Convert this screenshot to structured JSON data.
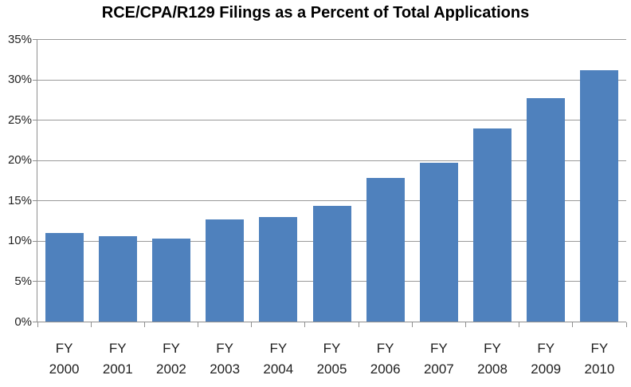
{
  "chart_data": {
    "type": "bar",
    "title": "RCE/CPA/R129 Filings as a Percent of Total Applications",
    "categories": [
      "FY 2000",
      "FY 2001",
      "FY 2002",
      "FY 2003",
      "FY 2004",
      "FY 2005",
      "FY 2006",
      "FY 2007",
      "FY 2008",
      "FY 2009",
      "FY 2010"
    ],
    "values": [
      11.0,
      10.6,
      10.3,
      12.7,
      13.0,
      14.4,
      17.8,
      19.7,
      24.0,
      27.7,
      31.2
    ],
    "title_position": "top-center",
    "xlabel": "",
    "ylabel": "",
    "ylim": [
      0,
      35
    ],
    "ytick_step": 5,
    "ytick_suffix": "%",
    "grid": true,
    "legend": false,
    "colors": {
      "bar": "#4f81bd",
      "gridline": "#9a9a9a",
      "axis": "#8f8f8f",
      "tick_text": "#1f1f1f",
      "title_text": "#000000",
      "background": "#ffffff"
    }
  }
}
